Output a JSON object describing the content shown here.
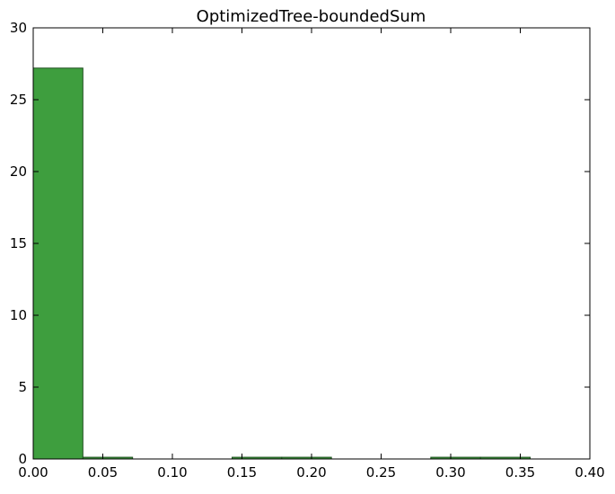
{
  "chart_data": {
    "type": "bar",
    "title": "OptimizedTree-boundedSum",
    "xlabel": "",
    "ylabel": "",
    "xlim": [
      0.0,
      0.4
    ],
    "ylim": [
      0,
      30
    ],
    "grid": false,
    "legend": "none",
    "bar_color": "#3e9e3e",
    "edge_color": "#1f4f1f",
    "bins": [
      {
        "x0": 0.0,
        "x1": 0.0357,
        "value": 27.2
      },
      {
        "x0": 0.0357,
        "x1": 0.0714,
        "value": 0.12
      },
      {
        "x0": 0.0714,
        "x1": 0.1071,
        "value": 0.0
      },
      {
        "x0": 0.1071,
        "x1": 0.1429,
        "value": 0.0
      },
      {
        "x0": 0.1429,
        "x1": 0.1786,
        "value": 0.12
      },
      {
        "x0": 0.1786,
        "x1": 0.2143,
        "value": 0.12
      },
      {
        "x0": 0.2143,
        "x1": 0.25,
        "value": 0.0
      },
      {
        "x0": 0.25,
        "x1": 0.2857,
        "value": 0.0
      },
      {
        "x0": 0.2857,
        "x1": 0.3214,
        "value": 0.12
      },
      {
        "x0": 0.3214,
        "x1": 0.3571,
        "value": 0.12
      }
    ],
    "x_ticks": [
      {
        "value": 0.0,
        "label": "0.00"
      },
      {
        "value": 0.05,
        "label": "0.05"
      },
      {
        "value": 0.1,
        "label": "0.10"
      },
      {
        "value": 0.15,
        "label": "0.15"
      },
      {
        "value": 0.2,
        "label": "0.20"
      },
      {
        "value": 0.25,
        "label": "0.25"
      },
      {
        "value": 0.3,
        "label": "0.30"
      },
      {
        "value": 0.35,
        "label": "0.35"
      },
      {
        "value": 0.4,
        "label": "0.40"
      }
    ],
    "y_ticks": [
      {
        "value": 0,
        "label": "0"
      },
      {
        "value": 5,
        "label": "5"
      },
      {
        "value": 10,
        "label": "10"
      },
      {
        "value": 15,
        "label": "15"
      },
      {
        "value": 20,
        "label": "20"
      },
      {
        "value": 25,
        "label": "25"
      },
      {
        "value": 30,
        "label": "30"
      }
    ]
  }
}
